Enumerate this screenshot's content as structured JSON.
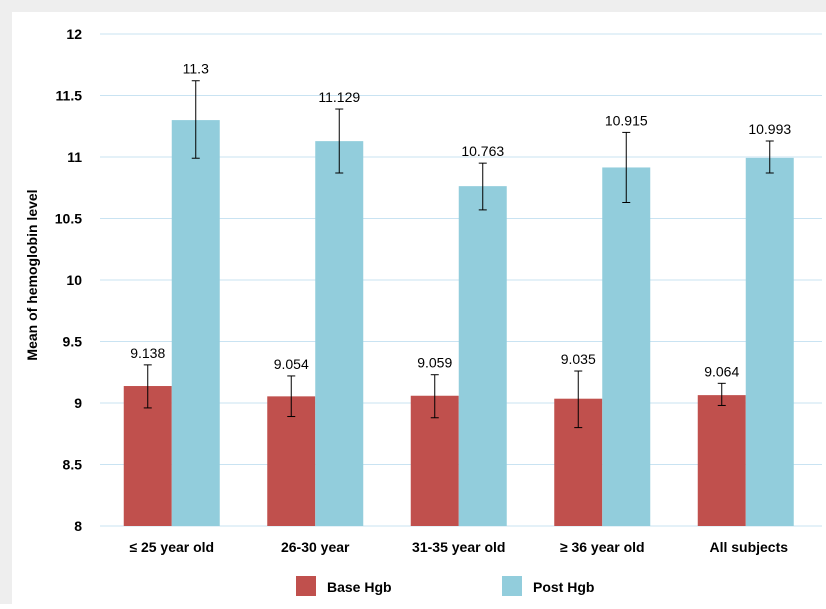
{
  "chart_data": {
    "type": "bar",
    "title": "",
    "xlabel": "",
    "ylabel": "Mean of hemoglobin level",
    "ylim": [
      8,
      12
    ],
    "yticks": [
      "8",
      "8.5",
      "9",
      "9.5",
      "10",
      "10.5",
      "11",
      "11.5",
      "12"
    ],
    "grid": true,
    "legend_position": "bottom",
    "categories": [
      "≤ 25 year old",
      "26-30 year",
      "31-35 year old",
      "≥ 36 year old",
      "All subjects"
    ],
    "series": [
      {
        "name": "Base Hgb",
        "color": "#C0504D",
        "values": [
          9.138,
          9.054,
          9.059,
          9.035,
          9.064
        ],
        "labels": [
          "9.138",
          "9.054",
          "9.059",
          "9.035",
          "9.064"
        ],
        "error_low": [
          8.96,
          8.89,
          8.88,
          8.8,
          8.98
        ],
        "error_high": [
          9.31,
          9.22,
          9.23,
          9.26,
          9.16
        ]
      },
      {
        "name": "Post Hgb",
        "color": "#92CDDC",
        "values": [
          11.3,
          11.129,
          10.763,
          10.915,
          10.993
        ],
        "labels": [
          "11.3",
          "11.129",
          "10.763",
          "10.915",
          "10.993"
        ],
        "error_low": [
          10.99,
          10.87,
          10.57,
          10.63,
          10.87
        ],
        "error_high": [
          11.62,
          11.39,
          10.95,
          11.2,
          11.13
        ]
      }
    ]
  }
}
